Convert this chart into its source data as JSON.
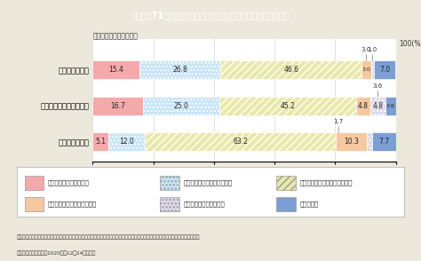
{
  "title": "Ｉ－特－71図　家庭内の家事・育児分担の変化と夫婦関係の変化",
  "subtitle": "＜役割分担の変化内容＞",
  "categories": [
    "夫の役割が増加",
    "夫・妻ともに役割が増加",
    "妻の役割が増加"
  ],
  "series": [
    {
      "name": "夫婆の関係が良くなった",
      "values": [
        15.4,
        16.7,
        5.1
      ],
      "color": "#f4aaaa",
      "hatch": null
    },
    {
      "name": "夫婆の関係がやや良くなった",
      "values": [
        26.8,
        25.0,
        12.0
      ],
      "color": "#c8e4f8",
      "hatch": "...."
    },
    {
      "name": "夫婆の関係はおおむね変化ない",
      "values": [
        46.6,
        45.2,
        63.2
      ],
      "color": "#e8e8a8",
      "hatch": "////"
    },
    {
      "name": "夫婆の関係がやや悪くなった",
      "values": [
        3.0,
        4.8,
        10.3
      ],
      "color": "#f5c8a0",
      "hatch": null
    },
    {
      "name": "夫婆の関係が悪くなった",
      "values": [
        1.0,
        4.8,
        1.7
      ],
      "color": "#ddd8e8",
      "hatch": "...."
    },
    {
      "name": "わからない",
      "values": [
        7.0,
        3.6,
        7.7
      ],
      "color": "#7b9fd4",
      "hatch": null
    }
  ],
  "background_color": "#ece8dc",
  "chart_background": "#ffffff",
  "title_bg": "#3ab0c8",
  "title_color": "#ffffff",
  "note1": "（備考）１．内閣府「第２回　新型コロナウイルス感染症の影響下における生活意識・行動の変化に関する調査」より引用・作成。",
  "note2": "　　　　２．令和２（2020）年12月24日公表。"
}
